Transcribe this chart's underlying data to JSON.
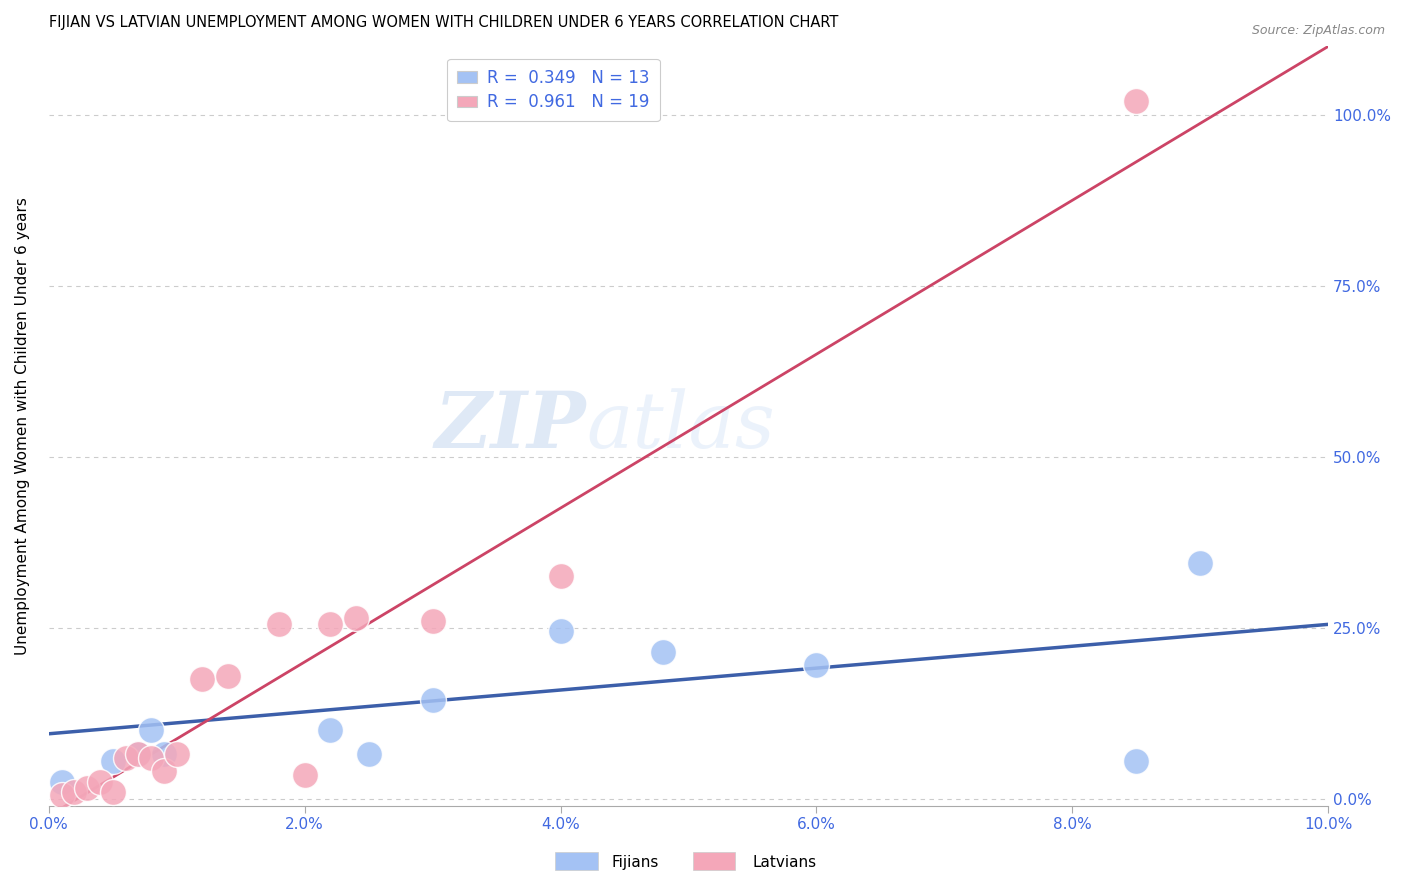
{
  "title": "FIJIAN VS LATVIAN UNEMPLOYMENT AMONG WOMEN WITH CHILDREN UNDER 6 YEARS CORRELATION CHART",
  "source": "Source: ZipAtlas.com",
  "ylabel": "Unemployment Among Women with Children Under 6 years",
  "xlim": [
    0.0,
    0.1
  ],
  "ylim": [
    -0.01,
    1.1
  ],
  "xticks": [
    0.0,
    0.02,
    0.04,
    0.06,
    0.08,
    0.1
  ],
  "yticks_left": [
    0.0,
    0.25,
    0.5,
    0.75,
    1.0
  ],
  "ytick_labels_right": [
    "0.0%",
    "25.0%",
    "50.0%",
    "75.0%",
    "100.0%"
  ],
  "fijian_color": "#a4c2f4",
  "latvian_color": "#f4a7b9",
  "fijian_line_color": "#3c5faa",
  "latvian_line_color": "#cc4466",
  "fijian_R": 0.349,
  "fijian_N": 13,
  "latvian_R": 0.961,
  "latvian_N": 19,
  "watermark_zip": "ZIP",
  "watermark_atlas": "atlas",
  "fijian_x": [
    0.001,
    0.005,
    0.007,
    0.008,
    0.009,
    0.022,
    0.025,
    0.03,
    0.04,
    0.048,
    0.06,
    0.085,
    0.09
  ],
  "fijian_y": [
    0.025,
    0.055,
    0.065,
    0.1,
    0.065,
    0.1,
    0.065,
    0.145,
    0.245,
    0.215,
    0.195,
    0.055,
    0.345
  ],
  "latvian_x": [
    0.001,
    0.002,
    0.003,
    0.004,
    0.005,
    0.006,
    0.007,
    0.008,
    0.009,
    0.01,
    0.012,
    0.014,
    0.018,
    0.02,
    0.022,
    0.024,
    0.03,
    0.04,
    0.085
  ],
  "latvian_y": [
    0.005,
    0.01,
    0.015,
    0.025,
    0.01,
    0.06,
    0.065,
    0.06,
    0.04,
    0.065,
    0.175,
    0.18,
    0.255,
    0.035,
    0.255,
    0.265,
    0.26,
    0.325,
    1.02
  ],
  "latvian_line_x0": 0.0,
  "latvian_line_y0": -0.025,
  "latvian_line_x1": 0.1,
  "latvian_line_y1": 1.1,
  "fijian_line_x0": 0.0,
  "fijian_line_y0": 0.095,
  "fijian_line_x1": 0.1,
  "fijian_line_y1": 0.255
}
